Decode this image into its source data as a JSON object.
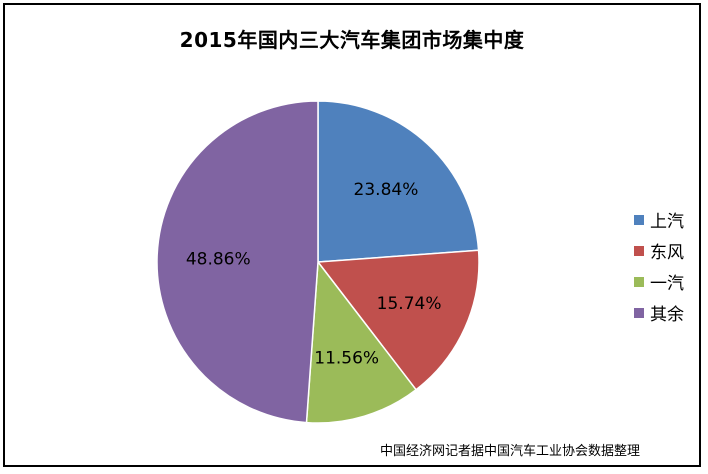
{
  "chart_data": {
    "type": "pie",
    "title": "2015年国内三大汽车集团市场集中度",
    "categories": [
      "上汽",
      "东风",
      "一汽",
      "其余"
    ],
    "values": [
      23.84,
      15.74,
      11.56,
      48.86
    ],
    "data_labels": [
      "23.84%",
      "15.74%",
      "11.56%",
      "48.86%"
    ],
    "colors": [
      "#4F81BD",
      "#C0504D",
      "#9BBB59",
      "#8064A2"
    ],
    "legend_position": "right",
    "note": "中国经济网记者据中国汽车工业协会数据整理"
  }
}
